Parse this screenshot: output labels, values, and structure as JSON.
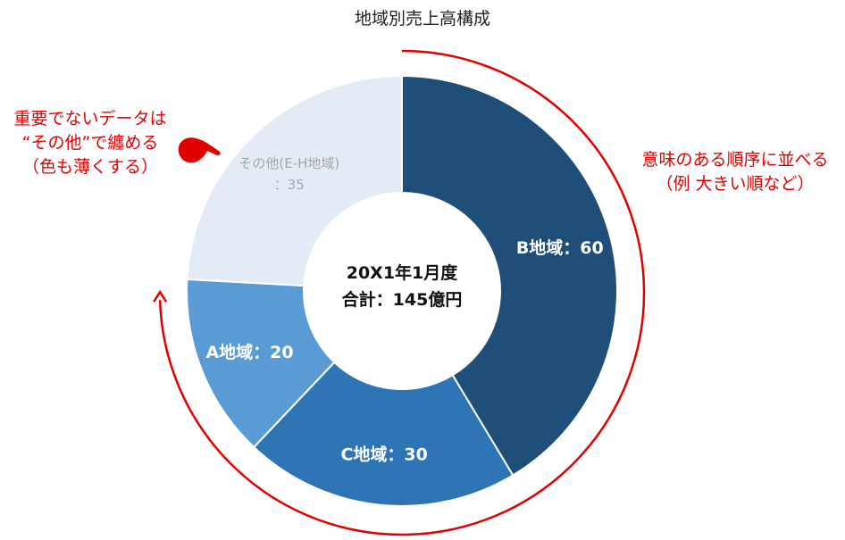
{
  "chart_data": {
    "type": "pie",
    "variant": "donut",
    "title": "地域別売上高構成",
    "center_label": [
      "20X1年1月度",
      "合計：145億円"
    ],
    "start": "top",
    "direction": "clockwise",
    "slices": [
      {
        "name": "B地域",
        "value": 60,
        "label": "B地域：60",
        "color": "#1f4e79",
        "text_color": "#ffffff"
      },
      {
        "name": "C地域",
        "value": 30,
        "label": "C地域：30",
        "color": "#2e75b6",
        "text_color": "#ffffff"
      },
      {
        "name": "A地域",
        "value": 20,
        "label": "A地域：20",
        "color": "#5b9bd5",
        "text_color": "#ffffff"
      },
      {
        "name": "その他(E-H地域)",
        "value": 35,
        "label": "その他(E-H地域)\n：35",
        "color": "#e3ecf6",
        "text_color": "#a6a6a6"
      }
    ],
    "legend": "none"
  },
  "annotations": {
    "left_note": [
      "重要でないデータは",
      "“その他”で纏める",
      "（色も薄くする）"
    ],
    "right_note": [
      "意味のある順序に並べる",
      "（例 大きい順など）"
    ],
    "color": "#e00000",
    "icons": [
      "pointing-hand-icon",
      "clockwise-arrow-icon"
    ]
  }
}
